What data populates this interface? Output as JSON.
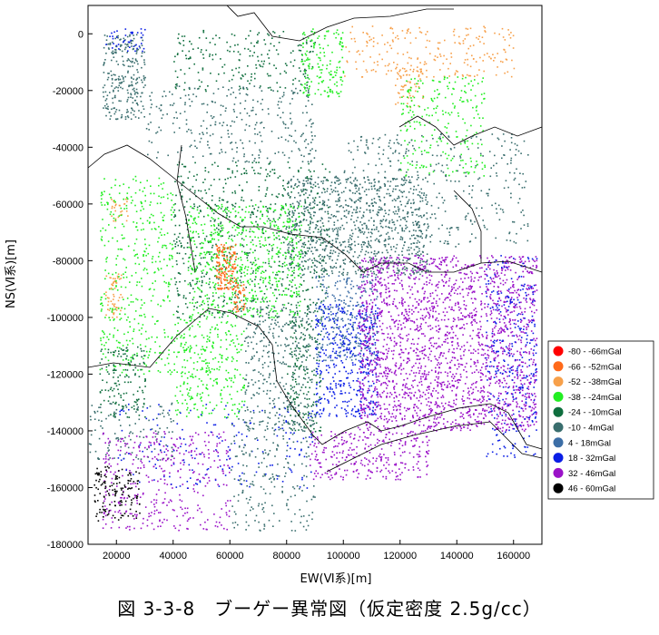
{
  "figure_caption": "図 3-3-8　ブーゲー異常図（仮定密度 2.5g/cc）",
  "chart_data": {
    "type": "scatter",
    "xlabel": "EW(Ⅵ系)[m]",
    "ylabel": "NS(Ⅵ系)[m]",
    "xlim": [
      10000,
      170000
    ],
    "ylim": [
      -180000,
      10000
    ],
    "x_ticks": [
      20000,
      40000,
      60000,
      80000,
      100000,
      120000,
      140000,
      160000
    ],
    "y_ticks": [
      0,
      -20000,
      -40000,
      -60000,
      -80000,
      -100000,
      -120000,
      -140000,
      -160000,
      -180000
    ],
    "x_tick_labels": [
      "20000",
      "40000",
      "60000",
      "80000",
      "100000",
      "120000",
      "140000",
      "160000"
    ],
    "y_tick_labels": [
      "0",
      "-20000",
      "-40000",
      "-60000",
      "-80000",
      "-100000",
      "-120000",
      "-140000",
      "-160000",
      "-180000"
    ],
    "legend_position": "right",
    "legend": [
      {
        "label": "-80 - -66mGal",
        "color": "#ff0000"
      },
      {
        "label": "-66 - -52mGal",
        "color": "#ff6a1a"
      },
      {
        "label": "-52 - -38mGal",
        "color": "#f7a04a"
      },
      {
        "label": "-38 - -24mGal",
        "color": "#22ee22"
      },
      {
        "label": "-24 - -10mGal",
        "color": "#0f6e3e"
      },
      {
        "label": "-10 - 4mGal",
        "color": "#3a6e6e"
      },
      {
        "label": "4 - 18mGal",
        "color": "#3c6ea6"
      },
      {
        "label": "18 - 32mGal",
        "color": "#0a1ee6"
      },
      {
        "label": "32 - 46mGal",
        "color": "#9a12c8"
      },
      {
        "label": "46 - 60mGal",
        "color": "#000000"
      }
    ],
    "regions": [
      {
        "class": 5,
        "x": [
          15000,
          30000
        ],
        "y": [
          -30000,
          0
        ],
        "n": 260
      },
      {
        "class": 7,
        "x": [
          16000,
          30000
        ],
        "y": [
          -6000,
          2000
        ],
        "n": 40
      },
      {
        "class": 4,
        "x": [
          40000,
          90000
        ],
        "y": [
          -20000,
          2000
        ],
        "n": 220
      },
      {
        "class": 3,
        "x": [
          85000,
          100000
        ],
        "y": [
          -22000,
          2000
        ],
        "n": 160
      },
      {
        "class": 2,
        "x": [
          100000,
          160000
        ],
        "y": [
          -15000,
          3000
        ],
        "n": 220
      },
      {
        "class": 2,
        "x": [
          118000,
          128000
        ],
        "y": [
          -26000,
          -10000
        ],
        "n": 60
      },
      {
        "class": 3,
        "x": [
          120000,
          150000
        ],
        "y": [
          -50000,
          -15000
        ],
        "n": 240
      },
      {
        "class": 5,
        "x": [
          30000,
          90000
        ],
        "y": [
          -45000,
          -18000
        ],
        "n": 300
      },
      {
        "class": 5,
        "x": [
          100000,
          165000
        ],
        "y": [
          -75000,
          -35000
        ],
        "n": 380
      },
      {
        "class": 4,
        "x": [
          40000,
          95000
        ],
        "y": [
          -100000,
          -45000
        ],
        "n": 700
      },
      {
        "class": 5,
        "x": [
          80000,
          130000
        ],
        "y": [
          -85000,
          -50000
        ],
        "n": 900
      },
      {
        "class": 3,
        "x": [
          45000,
          85000
        ],
        "y": [
          -100000,
          -60000
        ],
        "n": 650
      },
      {
        "class": 1,
        "x": [
          55000,
          62000
        ],
        "y": [
          -90000,
          -74000
        ],
        "n": 150
      },
      {
        "class": 1,
        "x": [
          61000,
          65000
        ],
        "y": [
          -98000,
          -88000
        ],
        "n": 40
      },
      {
        "class": 2,
        "x": [
          16000,
          22000
        ],
        "y": [
          -100000,
          -84000
        ],
        "n": 60
      },
      {
        "class": 2,
        "x": [
          18000,
          24000
        ],
        "y": [
          -66000,
          -58000
        ],
        "n": 30
      },
      {
        "class": 3,
        "x": [
          14000,
          40000
        ],
        "y": [
          -120000,
          -50000
        ],
        "n": 420
      },
      {
        "class": 3,
        "x": [
          40000,
          65000
        ],
        "y": [
          -135000,
          -100000
        ],
        "n": 300
      },
      {
        "class": 4,
        "x": [
          14000,
          30000
        ],
        "y": [
          -135000,
          -110000
        ],
        "n": 150
      },
      {
        "class": 4,
        "x": [
          80000,
          92000
        ],
        "y": [
          -140000,
          -100000
        ],
        "n": 180
      },
      {
        "class": 5,
        "x": [
          65000,
          90000
        ],
        "y": [
          -140000,
          -95000
        ],
        "n": 350
      },
      {
        "class": 6,
        "x": [
          90000,
          112000
        ],
        "y": [
          -115000,
          -85000
        ],
        "n": 300
      },
      {
        "class": 7,
        "x": [
          90000,
          112000
        ],
        "y": [
          -135000,
          -95000
        ],
        "n": 420
      },
      {
        "class": 8,
        "x": [
          105000,
          168000
        ],
        "y": [
          -140000,
          -78000
        ],
        "n": 2200
      },
      {
        "class": 7,
        "x": [
          150000,
          168000
        ],
        "y": [
          -150000,
          -78000
        ],
        "n": 300
      },
      {
        "class": 8,
        "x": [
          88000,
          130000
        ],
        "y": [
          -157000,
          -140000
        ],
        "n": 300
      },
      {
        "class": 5,
        "x": [
          10000,
          40000
        ],
        "y": [
          -150000,
          -130000
        ],
        "n": 120
      },
      {
        "class": 8,
        "x": [
          15000,
          60000
        ],
        "y": [
          -175000,
          -140000
        ],
        "n": 380
      },
      {
        "class": 7,
        "x": [
          20000,
          90000
        ],
        "y": [
          -160000,
          -130000
        ],
        "n": 180
      },
      {
        "class": 9,
        "x": [
          12000,
          28000
        ],
        "y": [
          -172000,
          -152000
        ],
        "n": 140
      },
      {
        "class": 5,
        "x": [
          60000,
          90000
        ],
        "y": [
          -175000,
          -135000
        ],
        "n": 200
      }
    ]
  }
}
